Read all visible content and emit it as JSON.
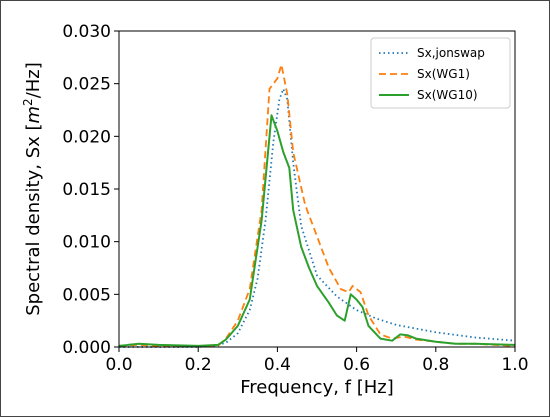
{
  "chart_data": {
    "type": "line",
    "title": "",
    "xlabel": "Frequency, f [Hz]",
    "ylabel_prefix": "Spectral density, Sx [",
    "ylabel_unit_m": "m",
    "ylabel_unit_sup": "2",
    "ylabel_unit_rest": "/Hz]",
    "xlim": [
      0.0,
      1.0
    ],
    "ylim": [
      0.0,
      0.03
    ],
    "xticks": [
      "0.0",
      "0.2",
      "0.4",
      "0.6",
      "0.8",
      "1.0"
    ],
    "yticks": [
      "0.000",
      "0.005",
      "0.010",
      "0.015",
      "0.020",
      "0.025",
      "0.030"
    ],
    "grid": false,
    "legend_position": "upper right",
    "series": [
      {
        "name": "Sx,jonswap",
        "color": "#1f77b4",
        "style": "dotted",
        "points": [
          [
            0.0,
            0.0
          ],
          [
            0.2,
            0.0
          ],
          [
            0.24,
            0.0001
          ],
          [
            0.27,
            0.0004
          ],
          [
            0.3,
            0.0013
          ],
          [
            0.33,
            0.0035
          ],
          [
            0.35,
            0.0065
          ],
          [
            0.37,
            0.012
          ],
          [
            0.39,
            0.0195
          ],
          [
            0.405,
            0.0235
          ],
          [
            0.415,
            0.0245
          ],
          [
            0.425,
            0.0235
          ],
          [
            0.44,
            0.0175
          ],
          [
            0.46,
            0.0115
          ],
          [
            0.5,
            0.0068
          ],
          [
            0.55,
            0.0048
          ],
          [
            0.6,
            0.0035
          ],
          [
            0.65,
            0.0027
          ],
          [
            0.7,
            0.0021
          ],
          [
            0.8,
            0.0014
          ],
          [
            0.9,
            0.0009
          ],
          [
            1.0,
            0.0006
          ]
        ]
      },
      {
        "name": "Sx(WG1)",
        "color": "#ff7f0e",
        "style": "dashed",
        "points": [
          [
            0.0,
            0.0001
          ],
          [
            0.05,
            0.0002
          ],
          [
            0.1,
            0.0001
          ],
          [
            0.2,
            0.0001
          ],
          [
            0.25,
            0.0001
          ],
          [
            0.27,
            0.0008
          ],
          [
            0.3,
            0.0025
          ],
          [
            0.33,
            0.0055
          ],
          [
            0.36,
            0.013
          ],
          [
            0.38,
            0.0245
          ],
          [
            0.4,
            0.0255
          ],
          [
            0.41,
            0.0268
          ],
          [
            0.425,
            0.024
          ],
          [
            0.44,
            0.0185
          ],
          [
            0.47,
            0.0135
          ],
          [
            0.5,
            0.0105
          ],
          [
            0.53,
            0.0075
          ],
          [
            0.56,
            0.0055
          ],
          [
            0.58,
            0.0052
          ],
          [
            0.59,
            0.0058
          ],
          [
            0.61,
            0.0052
          ],
          [
            0.63,
            0.003
          ],
          [
            0.66,
            0.0012
          ],
          [
            0.69,
            0.0008
          ],
          [
            0.72,
            0.001
          ],
          [
            0.75,
            0.0007
          ],
          [
            0.8,
            0.0005
          ],
          [
            0.85,
            0.0003
          ],
          [
            0.9,
            0.0003
          ],
          [
            1.0,
            0.0001
          ]
        ]
      },
      {
        "name": "Sx(WG10)",
        "color": "#2ca02c",
        "style": "solid",
        "points": [
          [
            0.0,
            0.0001
          ],
          [
            0.05,
            0.0003
          ],
          [
            0.1,
            0.0002
          ],
          [
            0.2,
            0.0001
          ],
          [
            0.25,
            0.0002
          ],
          [
            0.27,
            0.0007
          ],
          [
            0.3,
            0.002
          ],
          [
            0.33,
            0.0045
          ],
          [
            0.36,
            0.012
          ],
          [
            0.385,
            0.022
          ],
          [
            0.4,
            0.0205
          ],
          [
            0.415,
            0.0185
          ],
          [
            0.43,
            0.017
          ],
          [
            0.44,
            0.013
          ],
          [
            0.46,
            0.0095
          ],
          [
            0.48,
            0.0075
          ],
          [
            0.5,
            0.0058
          ],
          [
            0.53,
            0.0042
          ],
          [
            0.55,
            0.003
          ],
          [
            0.57,
            0.0025
          ],
          [
            0.585,
            0.005
          ],
          [
            0.6,
            0.0045
          ],
          [
            0.615,
            0.0038
          ],
          [
            0.63,
            0.002
          ],
          [
            0.66,
            0.0008
          ],
          [
            0.69,
            0.0006
          ],
          [
            0.71,
            0.0012
          ],
          [
            0.73,
            0.0011
          ],
          [
            0.75,
            0.0008
          ],
          [
            0.8,
            0.0005
          ],
          [
            0.85,
            0.0003
          ],
          [
            0.9,
            0.0003
          ],
          [
            1.0,
            0.0002
          ]
        ]
      }
    ]
  }
}
